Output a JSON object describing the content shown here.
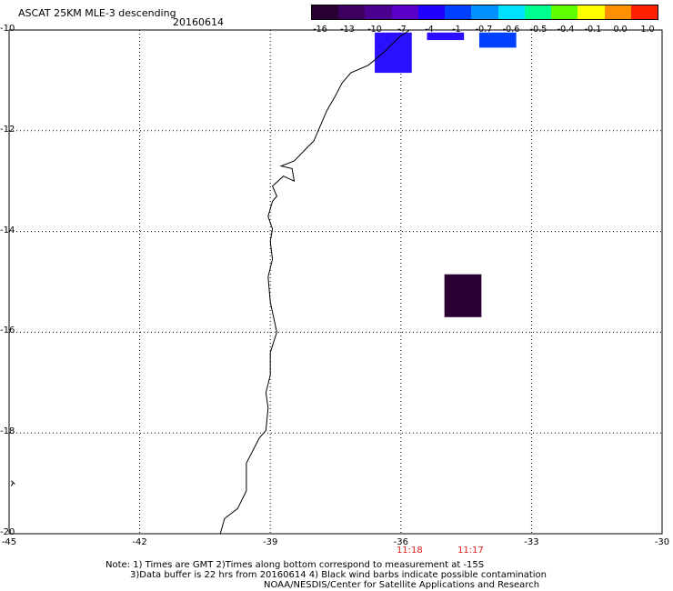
{
  "title": "ASCAT 25KM MLE-3 descending",
  "date": "20160614",
  "colorbar": {
    "labels": [
      "-16",
      "-13",
      "-10",
      "-7",
      "-4",
      "-1",
      "-0.7",
      "-0.6",
      "-0.5",
      "-0.4",
      "-0.1",
      "0.0",
      "1.0"
    ],
    "colors": [
      "#2a0033",
      "#3d0060",
      "#4b0090",
      "#5a00c8",
      "#2200ff",
      "#0040ff",
      "#0090ff",
      "#00e0ff",
      "#00ff90",
      "#60ff00",
      "#ffff00",
      "#ff9000",
      "#ff2000"
    ]
  },
  "map": {
    "lat_labels": [
      "-10",
      "-12",
      "-14",
      "-16",
      "-18",
      "-20"
    ],
    "lon_labels": [
      "-45",
      "-42",
      "-39",
      "-36",
      "-33",
      "-30"
    ],
    "lon_range": [
      -45,
      -30
    ],
    "lat_range": [
      -20,
      -10
    ],
    "coastline": [
      [
        -40.15,
        -20
      ],
      [
        -40.05,
        -19.7
      ],
      [
        -39.75,
        -19.5
      ],
      [
        -39.55,
        -19.15
      ],
      [
        -39.55,
        -18.6
      ],
      [
        -39.25,
        -18.1
      ],
      [
        -39.1,
        -17.95
      ],
      [
        -39.05,
        -17.5
      ],
      [
        -39.1,
        -17.2
      ],
      [
        -39.0,
        -16.85
      ],
      [
        -39.0,
        -16.4
      ],
      [
        -38.85,
        -16.0
      ],
      [
        -39.0,
        -15.4
      ],
      [
        -39.05,
        -14.9
      ],
      [
        -38.95,
        -14.55
      ],
      [
        -39.0,
        -14.2
      ],
      [
        -38.95,
        -13.95
      ],
      [
        -39.05,
        -13.7
      ],
      [
        -38.95,
        -13.4
      ],
      [
        -38.85,
        -13.3
      ],
      [
        -38.95,
        -13.1
      ],
      [
        -38.7,
        -12.9
      ],
      [
        -38.45,
        -13.0
      ],
      [
        -38.5,
        -12.75
      ],
      [
        -38.75,
        -12.7
      ],
      [
        -38.45,
        -12.6
      ],
      [
        -38.0,
        -12.2
      ],
      [
        -37.7,
        -11.6
      ],
      [
        -37.5,
        -11.3
      ],
      [
        -37.35,
        -11.05
      ],
      [
        -37.15,
        -10.85
      ],
      [
        -36.75,
        -10.7
      ],
      [
        -36.4,
        -10.45
      ],
      [
        -36.05,
        -10.15
      ],
      [
        -35.8,
        -10.0
      ]
    ],
    "cells": [
      {
        "lon_min": -36.6,
        "lon_max": -35.75,
        "lat_min": -10.85,
        "lat_max": -10.05,
        "value": -7,
        "color": "#2a10ff"
      },
      {
        "lon_min": -35.4,
        "lon_max": -34.55,
        "lat_min": -10.2,
        "lat_max": -10.05,
        "value": -4,
        "color": "#2a10ff"
      },
      {
        "lon_min": -34.2,
        "lon_max": -33.35,
        "lat_min": -10.35,
        "lat_max": -10.05,
        "value": -1,
        "color": "#0040ff"
      },
      {
        "lon_min": -35.0,
        "lon_max": -34.15,
        "lat_min": -15.7,
        "lat_max": -14.85,
        "value": -16,
        "color": "#2a0033"
      }
    ]
  },
  "times": [
    {
      "label": "11:18",
      "lon": -35.8
    },
    {
      "label": "11:17",
      "lon": -34.4
    }
  ],
  "notes": [
    "Note: 1) Times are GMT 2)Times along bottom correspond to measurement at -15S",
    "3)Data buffer is 22 hrs from 20160614 4) Black wind barbs indicate possible contamination",
    "NOAA/NESDIS/Center for Satellite Applications and Research"
  ]
}
